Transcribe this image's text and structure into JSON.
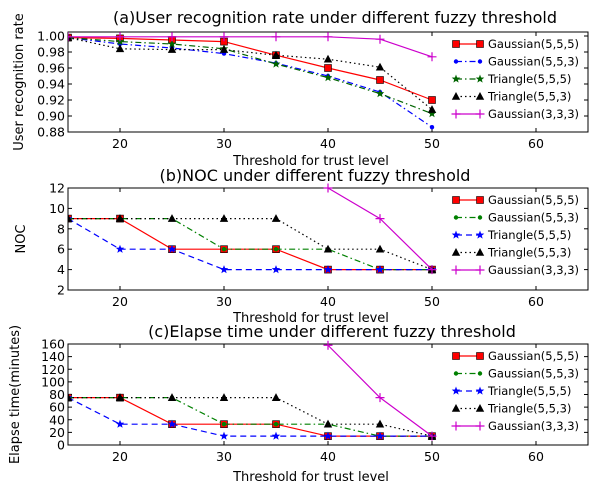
{
  "chart_data": [
    {
      "type": "line",
      "title": "(a)User recognition rate under different fuzzy threshold",
      "xlabel": "Threshold for trust level",
      "ylabel": "User recognition rate",
      "xlim": [
        15,
        65
      ],
      "ylim": [
        0.88,
        1.005
      ],
      "xticks": [
        20,
        30,
        40,
        50,
        60
      ],
      "yticks": [
        0.88,
        0.9,
        0.92,
        0.94,
        0.96,
        0.98,
        1.0
      ],
      "ytick_labels": [
        "0.88",
        "0.90",
        "0.92",
        "0.94",
        "0.96",
        "0.98",
        "1.00"
      ],
      "legend_position": "right",
      "series": [
        {
          "name": "Gaussian(5,5,5)",
          "color": "#ff0000",
          "marker": "square",
          "linestyle": "solid",
          "x": [
            15,
            20,
            25,
            30,
            35,
            40,
            45,
            50
          ],
          "y": [
            0.998,
            0.997,
            0.995,
            0.993,
            0.976,
            0.96,
            0.945,
            0.92
          ]
        },
        {
          "name": "Gaussian(5,5,3)",
          "color": "#0000ff",
          "marker": "dot",
          "linestyle": "dashdot",
          "x": [
            15,
            20,
            25,
            30,
            35,
            40,
            45,
            50
          ],
          "y": [
            0.998,
            0.99,
            0.985,
            0.978,
            0.966,
            0.95,
            0.93,
            0.886
          ]
        },
        {
          "name": "Triangle(5,5,5)",
          "color": "#006400",
          "marker": "star",
          "linestyle": "dashdot",
          "x": [
            15,
            20,
            25,
            30,
            35,
            40,
            45,
            50
          ],
          "y": [
            0.998,
            0.993,
            0.99,
            0.984,
            0.965,
            0.948,
            0.928,
            0.903
          ]
        },
        {
          "name": "Triangle(5,5,3)",
          "color": "#000000",
          "marker": "triangle",
          "linestyle": "dotted",
          "x": [
            15,
            20,
            25,
            30,
            35,
            40,
            45,
            50
          ],
          "y": [
            0.998,
            0.984,
            0.983,
            0.983,
            0.976,
            0.971,
            0.961,
            0.908
          ]
        },
        {
          "name": "Gaussian(3,3,3)",
          "color": "#cc00cc",
          "marker": "plus",
          "linestyle": "solid",
          "x": [
            15,
            20,
            25,
            30,
            35,
            40,
            45,
            50
          ],
          "y": [
            0.999,
            0.999,
            0.999,
            0.999,
            0.999,
            0.999,
            0.996,
            0.974
          ]
        }
      ]
    },
    {
      "type": "line",
      "title": "(b)NOC under different fuzzy threshold",
      "xlabel": "Threshold for trust level",
      "ylabel": "NOC",
      "xlim": [
        15,
        65
      ],
      "ylim": [
        2,
        12
      ],
      "xticks": [
        20,
        30,
        40,
        50,
        60
      ],
      "yticks": [
        2,
        4,
        6,
        8,
        10,
        12
      ],
      "ytick_labels": [
        "2",
        "4",
        "6",
        "8",
        "10",
        "12"
      ],
      "legend_position": "right",
      "series": [
        {
          "name": "Gaussian(5,5,5)",
          "color": "#ff0000",
          "marker": "square",
          "linestyle": "solid",
          "x": [
            15,
            20,
            25,
            30,
            35,
            40,
            45,
            50
          ],
          "y": [
            9,
            9,
            6,
            6,
            6,
            4,
            4,
            4
          ]
        },
        {
          "name": "Gaussian(5,5,3)",
          "color": "#008000",
          "marker": "dot",
          "linestyle": "dashdot",
          "x": [
            15,
            20,
            25,
            30,
            35,
            40,
            45,
            50
          ],
          "y": [
            9,
            9,
            9,
            6,
            6,
            6,
            4,
            4
          ]
        },
        {
          "name": "Triangle(5,5,5)",
          "color": "#0000ff",
          "marker": "star",
          "linestyle": "dashed",
          "x": [
            15,
            20,
            25,
            30,
            35,
            40,
            45,
            50
          ],
          "y": [
            9,
            6,
            6,
            4,
            4,
            4,
            4,
            4
          ]
        },
        {
          "name": "Triangle(5,5,3)",
          "color": "#000000",
          "marker": "triangle",
          "linestyle": "dotted",
          "x": [
            15,
            20,
            25,
            30,
            35,
            40,
            45,
            50
          ],
          "y": [
            9,
            9,
            9,
            9,
            9,
            6,
            6,
            4
          ]
        },
        {
          "name": "Gaussian(3,3,3)",
          "color": "#cc00cc",
          "marker": "plus",
          "linestyle": "solid",
          "x": [
            40,
            45,
            50
          ],
          "y": [
            12,
            9,
            4
          ]
        }
      ]
    },
    {
      "type": "line",
      "title": "(c)Elapse time under different fuzzy threshold",
      "xlabel": "Threshold for trust level",
      "ylabel": "Elapse time(minutes)",
      "xlim": [
        15,
        65
      ],
      "ylim": [
        0,
        160
      ],
      "xticks": [
        20,
        30,
        40,
        50,
        60
      ],
      "yticks": [
        0,
        20,
        40,
        60,
        80,
        100,
        120,
        140,
        160
      ],
      "ytick_labels": [
        "0",
        "20",
        "40",
        "60",
        "80",
        "100",
        "120",
        "140",
        "160"
      ],
      "legend_position": "right",
      "series": [
        {
          "name": "Gaussian(5,5,5)",
          "color": "#ff0000",
          "marker": "square",
          "linestyle": "solid",
          "x": [
            15,
            20,
            25,
            30,
            35,
            40,
            45,
            50
          ],
          "y": [
            75,
            75,
            33,
            33,
            33,
            14,
            14,
            14
          ]
        },
        {
          "name": "Gaussian(5,5,3)",
          "color": "#008000",
          "marker": "dot",
          "linestyle": "dashdot",
          "x": [
            15,
            20,
            25,
            30,
            35,
            40,
            45,
            50
          ],
          "y": [
            75,
            75,
            75,
            33,
            33,
            33,
            14,
            14
          ]
        },
        {
          "name": "Triangle(5,5,5)",
          "color": "#0000ff",
          "marker": "star",
          "linestyle": "dashed",
          "x": [
            15,
            20,
            25,
            30,
            35,
            40,
            45,
            50
          ],
          "y": [
            75,
            33,
            33,
            14,
            14,
            14,
            14,
            14
          ]
        },
        {
          "name": "Triangle(5,5,3)",
          "color": "#000000",
          "marker": "triangle",
          "linestyle": "dotted",
          "x": [
            15,
            20,
            25,
            30,
            35,
            40,
            45,
            50
          ],
          "y": [
            75,
            75,
            75,
            75,
            75,
            33,
            33,
            14
          ]
        },
        {
          "name": "Gaussian(3,3,3)",
          "color": "#cc00cc",
          "marker": "plus",
          "linestyle": "solid",
          "x": [
            40,
            45,
            50
          ],
          "y": [
            158,
            75,
            14
          ]
        }
      ]
    }
  ]
}
